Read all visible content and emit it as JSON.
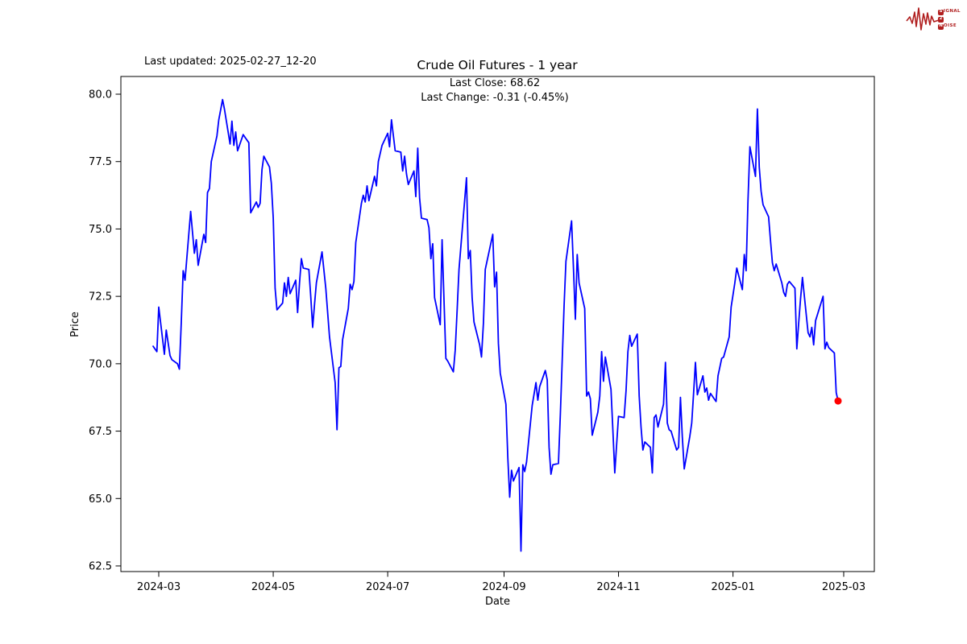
{
  "header": {
    "last_updated": "Last updated: 2025-02-27_12-20",
    "title": "Crude Oil Futures - 1 year",
    "annotation_line1": "Last Close: 68.62",
    "annotation_line2": "Last Change: -0.31 (-0.45%)"
  },
  "logo": {
    "s": "S",
    "signal_rest": "IGNAL",
    "two": "2",
    "n": "N",
    "noise_rest": "OISE",
    "color": "#b01e1e"
  },
  "chart_data": {
    "type": "line",
    "title": "Crude Oil Futures - 1 year",
    "xlabel": "Date",
    "ylabel": "Price",
    "line_color": "#0000ff",
    "last_point_color": "#ff0000",
    "axis_color": "#000000",
    "grid": false,
    "ylim": [
      62.3,
      80.65
    ],
    "yticks": [
      80.0,
      77.5,
      75.0,
      72.5,
      70.0,
      67.5,
      65.0,
      62.5
    ],
    "xticks": [
      "2024-03",
      "2024-05",
      "2024-07",
      "2024-09",
      "2024-11",
      "2025-01",
      "2025-03"
    ],
    "last_close": 68.62,
    "last_change": -0.31,
    "last_change_pct": "-0.45%",
    "series": [
      {
        "name": "Crude Oil Futures",
        "points": [
          [
            "2024-02-27",
            70.65
          ],
          [
            "2024-02-29",
            70.45
          ],
          [
            "2024-03-01",
            72.1
          ],
          [
            "2024-03-04",
            70.35
          ],
          [
            "2024-03-05",
            71.25
          ],
          [
            "2024-03-07",
            70.3
          ],
          [
            "2024-03-08",
            70.15
          ],
          [
            "2024-03-11",
            70.0
          ],
          [
            "2024-03-12",
            69.8
          ],
          [
            "2024-03-13",
            71.5
          ],
          [
            "2024-03-14",
            73.45
          ],
          [
            "2024-03-15",
            73.1
          ],
          [
            "2024-03-18",
            75.65
          ],
          [
            "2024-03-20",
            74.1
          ],
          [
            "2024-03-21",
            74.6
          ],
          [
            "2024-03-22",
            73.65
          ],
          [
            "2024-03-25",
            74.8
          ],
          [
            "2024-03-26",
            74.5
          ],
          [
            "2024-03-27",
            76.35
          ],
          [
            "2024-03-28",
            76.5
          ],
          [
            "2024-03-29",
            77.5
          ],
          [
            "2024-04-01",
            78.45
          ],
          [
            "2024-04-02",
            79.05
          ],
          [
            "2024-04-04",
            79.8
          ],
          [
            "2024-04-05",
            79.45
          ],
          [
            "2024-04-08",
            78.15
          ],
          [
            "2024-04-09",
            79.0
          ],
          [
            "2024-04-10",
            78.1
          ],
          [
            "2024-04-11",
            78.6
          ],
          [
            "2024-04-12",
            77.9
          ],
          [
            "2024-04-15",
            78.5
          ],
          [
            "2024-04-16",
            78.4
          ],
          [
            "2024-04-18",
            78.2
          ],
          [
            "2024-04-19",
            75.6
          ],
          [
            "2024-04-22",
            76.0
          ],
          [
            "2024-04-23",
            75.8
          ],
          [
            "2024-04-24",
            75.95
          ],
          [
            "2024-04-25",
            77.2
          ],
          [
            "2024-04-26",
            77.7
          ],
          [
            "2024-04-29",
            77.3
          ],
          [
            "2024-04-30",
            76.7
          ],
          [
            "2024-05-01",
            75.4
          ],
          [
            "2024-05-02",
            72.8
          ],
          [
            "2024-05-03",
            72.0
          ],
          [
            "2024-05-06",
            72.25
          ],
          [
            "2024-05-07",
            73.0
          ],
          [
            "2024-05-08",
            72.5
          ],
          [
            "2024-05-09",
            73.2
          ],
          [
            "2024-05-10",
            72.6
          ],
          [
            "2024-05-13",
            73.1
          ],
          [
            "2024-05-14",
            71.9
          ],
          [
            "2024-05-15",
            73.0
          ],
          [
            "2024-05-16",
            73.9
          ],
          [
            "2024-05-17",
            73.55
          ],
          [
            "2024-05-20",
            73.5
          ],
          [
            "2024-05-21",
            72.5
          ],
          [
            "2024-05-22",
            71.35
          ],
          [
            "2024-05-23",
            72.2
          ],
          [
            "2024-05-24",
            73.0
          ],
          [
            "2024-05-27",
            74.15
          ],
          [
            "2024-05-29",
            72.8
          ],
          [
            "2024-05-31",
            71.0
          ],
          [
            "2024-06-03",
            69.3
          ],
          [
            "2024-06-04",
            67.55
          ],
          [
            "2024-06-05",
            69.85
          ],
          [
            "2024-06-06",
            69.9
          ],
          [
            "2024-06-07",
            70.9
          ],
          [
            "2024-06-10",
            72.05
          ],
          [
            "2024-06-11",
            72.95
          ],
          [
            "2024-06-12",
            72.75
          ],
          [
            "2024-06-13",
            73.05
          ],
          [
            "2024-06-14",
            74.5
          ],
          [
            "2024-06-17",
            75.95
          ],
          [
            "2024-06-18",
            76.25
          ],
          [
            "2024-06-19",
            76.0
          ],
          [
            "2024-06-20",
            76.6
          ],
          [
            "2024-06-21",
            76.05
          ],
          [
            "2024-06-24",
            76.95
          ],
          [
            "2024-06-25",
            76.6
          ],
          [
            "2024-06-26",
            77.5
          ],
          [
            "2024-06-28",
            78.1
          ],
          [
            "2024-07-01",
            78.55
          ],
          [
            "2024-07-02",
            78.05
          ],
          [
            "2024-07-03",
            79.05
          ],
          [
            "2024-07-05",
            77.9
          ],
          [
            "2024-07-08",
            77.85
          ],
          [
            "2024-07-09",
            77.15
          ],
          [
            "2024-07-10",
            77.7
          ],
          [
            "2024-07-11",
            77.05
          ],
          [
            "2024-07-12",
            76.65
          ],
          [
            "2024-07-15",
            77.15
          ],
          [
            "2024-07-16",
            76.2
          ],
          [
            "2024-07-17",
            78.0
          ],
          [
            "2024-07-18",
            76.15
          ],
          [
            "2024-07-19",
            75.4
          ],
          [
            "2024-07-22",
            75.35
          ],
          [
            "2024-07-23",
            75.05
          ],
          [
            "2024-07-24",
            73.9
          ],
          [
            "2024-07-25",
            74.45
          ],
          [
            "2024-07-26",
            72.45
          ],
          [
            "2024-07-29",
            71.45
          ],
          [
            "2024-07-30",
            74.6
          ],
          [
            "2024-08-01",
            70.2
          ],
          [
            "2024-08-02",
            70.1
          ],
          [
            "2024-08-05",
            69.7
          ],
          [
            "2024-08-06",
            70.5
          ],
          [
            "2024-08-07",
            72.0
          ],
          [
            "2024-08-08",
            73.5
          ],
          [
            "2024-08-12",
            76.9
          ],
          [
            "2024-08-13",
            73.9
          ],
          [
            "2024-08-14",
            74.2
          ],
          [
            "2024-08-15",
            72.45
          ],
          [
            "2024-08-16",
            71.55
          ],
          [
            "2024-08-19",
            70.7
          ],
          [
            "2024-08-20",
            70.25
          ],
          [
            "2024-08-21",
            71.5
          ],
          [
            "2024-08-22",
            73.5
          ],
          [
            "2024-08-26",
            74.8
          ],
          [
            "2024-08-27",
            72.85
          ],
          [
            "2024-08-28",
            73.4
          ],
          [
            "2024-08-29",
            70.75
          ],
          [
            "2024-08-30",
            69.65
          ],
          [
            "2024-09-02",
            68.5
          ],
          [
            "2024-09-03",
            66.5
          ],
          [
            "2024-09-04",
            65.05
          ],
          [
            "2024-09-05",
            66.05
          ],
          [
            "2024-09-06",
            65.65
          ],
          [
            "2024-09-09",
            66.15
          ],
          [
            "2024-09-10",
            63.05
          ],
          [
            "2024-09-11",
            66.25
          ],
          [
            "2024-09-12",
            66.0
          ],
          [
            "2024-09-13",
            66.35
          ],
          [
            "2024-09-16",
            68.45
          ],
          [
            "2024-09-18",
            69.3
          ],
          [
            "2024-09-19",
            68.65
          ],
          [
            "2024-09-20",
            69.15
          ],
          [
            "2024-09-23",
            69.75
          ],
          [
            "2024-09-24",
            69.4
          ],
          [
            "2024-09-25",
            66.9
          ],
          [
            "2024-09-26",
            65.9
          ],
          [
            "2024-09-27",
            66.25
          ],
          [
            "2024-09-30",
            66.3
          ],
          [
            "2024-10-01",
            68.15
          ],
          [
            "2024-10-03",
            72.15
          ],
          [
            "2024-10-04",
            73.8
          ],
          [
            "2024-10-07",
            75.3
          ],
          [
            "2024-10-08",
            73.5
          ],
          [
            "2024-10-09",
            71.65
          ],
          [
            "2024-10-10",
            74.05
          ],
          [
            "2024-10-11",
            73.0
          ],
          [
            "2024-10-14",
            72.05
          ],
          [
            "2024-10-15",
            68.8
          ],
          [
            "2024-10-16",
            68.95
          ],
          [
            "2024-10-17",
            68.7
          ],
          [
            "2024-10-18",
            67.35
          ],
          [
            "2024-10-21",
            68.2
          ],
          [
            "2024-10-22",
            68.8
          ],
          [
            "2024-10-23",
            70.45
          ],
          [
            "2024-10-24",
            69.35
          ],
          [
            "2024-10-25",
            70.25
          ],
          [
            "2024-10-28",
            69.05
          ],
          [
            "2024-10-29",
            67.5
          ],
          [
            "2024-10-30",
            65.95
          ],
          [
            "2024-11-01",
            68.05
          ],
          [
            "2024-11-04",
            68.0
          ],
          [
            "2024-11-05",
            69.0
          ],
          [
            "2024-11-06",
            70.45
          ],
          [
            "2024-11-07",
            71.05
          ],
          [
            "2024-11-08",
            70.65
          ],
          [
            "2024-11-11",
            71.1
          ],
          [
            "2024-11-12",
            68.8
          ],
          [
            "2024-11-13",
            67.65
          ],
          [
            "2024-11-14",
            66.8
          ],
          [
            "2024-11-15",
            67.1
          ],
          [
            "2024-11-18",
            66.9
          ],
          [
            "2024-11-19",
            65.95
          ],
          [
            "2024-11-20",
            68.0
          ],
          [
            "2024-11-21",
            68.1
          ],
          [
            "2024-11-22",
            67.65
          ],
          [
            "2024-11-25",
            68.5
          ],
          [
            "2024-11-26",
            70.05
          ],
          [
            "2024-11-27",
            67.8
          ],
          [
            "2024-11-28",
            67.55
          ],
          [
            "2024-11-29",
            67.5
          ],
          [
            "2024-12-02",
            66.8
          ],
          [
            "2024-12-03",
            66.9
          ],
          [
            "2024-12-04",
            68.75
          ],
          [
            "2024-12-05",
            67.3
          ],
          [
            "2024-12-06",
            66.1
          ],
          [
            "2024-12-09",
            67.3
          ],
          [
            "2024-12-10",
            67.8
          ],
          [
            "2024-12-11",
            68.9
          ],
          [
            "2024-12-12",
            70.05
          ],
          [
            "2024-12-13",
            68.85
          ],
          [
            "2024-12-16",
            69.55
          ],
          [
            "2024-12-17",
            68.95
          ],
          [
            "2024-12-18",
            69.1
          ],
          [
            "2024-12-19",
            68.65
          ],
          [
            "2024-12-20",
            68.9
          ],
          [
            "2024-12-23",
            68.6
          ],
          [
            "2024-12-24",
            69.55
          ],
          [
            "2024-12-26",
            70.2
          ],
          [
            "2024-12-27",
            70.25
          ],
          [
            "2024-12-30",
            71.0
          ],
          [
            "2024-12-31",
            72.1
          ],
          [
            "2025-01-02",
            73.0
          ],
          [
            "2025-01-03",
            73.55
          ],
          [
            "2025-01-06",
            72.75
          ],
          [
            "2025-01-07",
            74.05
          ],
          [
            "2025-01-08",
            73.45
          ],
          [
            "2025-01-09",
            76.05
          ],
          [
            "2025-01-10",
            78.05
          ],
          [
            "2025-01-13",
            76.95
          ],
          [
            "2025-01-14",
            79.45
          ],
          [
            "2025-01-15",
            77.3
          ],
          [
            "2025-01-16",
            76.4
          ],
          [
            "2025-01-17",
            75.9
          ],
          [
            "2025-01-20",
            75.45
          ],
          [
            "2025-01-21",
            74.55
          ],
          [
            "2025-01-22",
            73.75
          ],
          [
            "2025-01-23",
            73.45
          ],
          [
            "2025-01-24",
            73.7
          ],
          [
            "2025-01-27",
            73.0
          ],
          [
            "2025-01-28",
            72.65
          ],
          [
            "2025-01-29",
            72.5
          ],
          [
            "2025-01-30",
            72.95
          ],
          [
            "2025-01-31",
            73.05
          ],
          [
            "2025-02-03",
            72.8
          ],
          [
            "2025-02-04",
            70.55
          ],
          [
            "2025-02-05",
            71.5
          ],
          [
            "2025-02-06",
            72.4
          ],
          [
            "2025-02-07",
            73.2
          ],
          [
            "2025-02-10",
            71.15
          ],
          [
            "2025-02-11",
            71.0
          ],
          [
            "2025-02-12",
            71.35
          ],
          [
            "2025-02-13",
            70.7
          ],
          [
            "2025-02-14",
            71.6
          ],
          [
            "2025-02-18",
            72.5
          ],
          [
            "2025-02-19",
            70.55
          ],
          [
            "2025-02-20",
            70.8
          ],
          [
            "2025-02-21",
            70.6
          ],
          [
            "2025-02-24",
            70.4
          ],
          [
            "2025-02-25",
            68.93
          ],
          [
            "2025-02-26",
            68.62
          ]
        ]
      }
    ]
  }
}
